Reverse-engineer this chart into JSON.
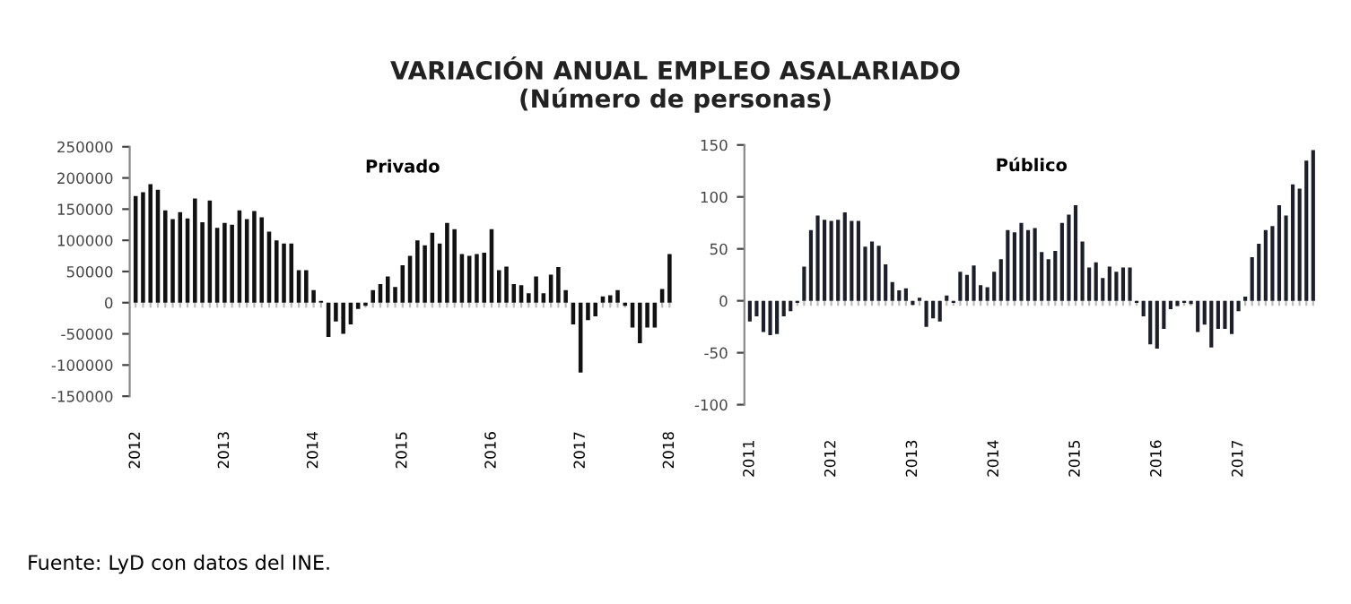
{
  "chart_data": [
    {
      "type": "bar",
      "title": "VARIACIÓN ANUAL EMPLEO ASALARIADO",
      "subtitle": "(Número de personas)",
      "annotations": [
        "Privado",
        "Fuente: LyD con datos del INE."
      ],
      "categories": [
        "2012",
        null,
        null,
        null,
        null,
        null,
        null,
        null,
        null,
        null,
        null,
        null,
        "2013",
        null,
        null,
        null,
        null,
        null,
        null,
        null,
        null,
        null,
        null,
        null,
        "2014",
        null,
        null,
        null,
        null,
        null,
        null,
        null,
        null,
        null,
        null,
        null,
        "2015",
        null,
        null,
        null,
        null,
        null,
        null,
        null,
        null,
        null,
        null,
        null,
        "2016",
        null,
        null,
        null,
        null,
        null,
        null,
        null,
        null,
        null,
        null,
        null,
        "2017",
        null,
        null,
        null,
        null,
        null,
        null,
        null,
        null,
        null,
        null,
        null,
        "2018"
      ],
      "series": [
        {
          "color": "#111111",
          "values": [
            171000,
            177000,
            190000,
            181000,
            148000,
            134000,
            145000,
            135000,
            167000,
            129000,
            164000,
            120000,
            128000,
            125000,
            148000,
            134000,
            147000,
            137000,
            114000,
            100000,
            95000,
            95000,
            52000,
            52000,
            20000,
            3000,
            -55000,
            -30000,
            -50000,
            -35000,
            -10000,
            -5000,
            20000,
            30000,
            42000,
            25000,
            60000,
            75000,
            100000,
            92000,
            112000,
            95000,
            128000,
            118000,
            78000,
            75000,
            78000,
            80000,
            118000,
            52000,
            58000,
            30000,
            28000,
            15000,
            42000,
            15000,
            45000,
            57000,
            20000,
            -35000,
            -112000,
            -28000,
            -22000,
            10000,
            12000,
            20000,
            -5000,
            -40000,
            -65000,
            -40000,
            -40000,
            22000,
            78000
          ]
        }
      ],
      "ylim": [
        -150000,
        250000
      ],
      "yticks": [
        -150000,
        -100000,
        -50000,
        0,
        50000,
        100000,
        150000,
        200000,
        250000
      ],
      "grid": false
    },
    {
      "type": "bar",
      "annotations": [
        "Público"
      ],
      "categories": [
        "2011",
        null,
        null,
        null,
        null,
        null,
        null,
        null,
        null,
        null,
        null,
        null,
        "2012",
        null,
        null,
        null,
        null,
        null,
        null,
        null,
        null,
        null,
        null,
        null,
        "2013",
        null,
        null,
        null,
        null,
        null,
        null,
        null,
        null,
        null,
        null,
        null,
        "2014",
        null,
        null,
        null,
        null,
        null,
        null,
        null,
        null,
        null,
        null,
        null,
        "2015",
        null,
        null,
        null,
        null,
        null,
        null,
        null,
        null,
        null,
        null,
        null,
        "2016",
        null,
        null,
        null,
        null,
        null,
        null,
        null,
        null,
        null,
        null,
        null,
        "2017",
        null,
        null,
        null,
        null,
        null,
        null,
        null,
        null,
        null,
        null,
        null
      ],
      "series": [
        {
          "color": "#1c1f2a",
          "values": [
            -20,
            -15,
            -30,
            -33,
            -32,
            -15,
            -10,
            -2,
            33,
            68,
            82,
            78,
            77,
            78,
            85,
            77,
            77,
            52,
            57,
            53,
            35,
            18,
            10,
            12,
            -4,
            3,
            -25,
            -17,
            -20,
            5,
            -2,
            28,
            25,
            34,
            15,
            13,
            28,
            40,
            68,
            66,
            75,
            68,
            70,
            47,
            40,
            48,
            75,
            83,
            92,
            57,
            32,
            37,
            22,
            33,
            28,
            32,
            32,
            -2,
            -15,
            -42,
            -46,
            -27,
            -8,
            -5,
            -2,
            -3,
            -30,
            -23,
            -45,
            -27,
            -27,
            -32,
            -10,
            4,
            42,
            55,
            68,
            72,
            92,
            82,
            112,
            108,
            135,
            145
          ]
        }
      ],
      "ylim": [
        -100,
        150
      ],
      "yticks": [
        -100,
        -50,
        0,
        50,
        100,
        150
      ],
      "grid": false
    }
  ]
}
